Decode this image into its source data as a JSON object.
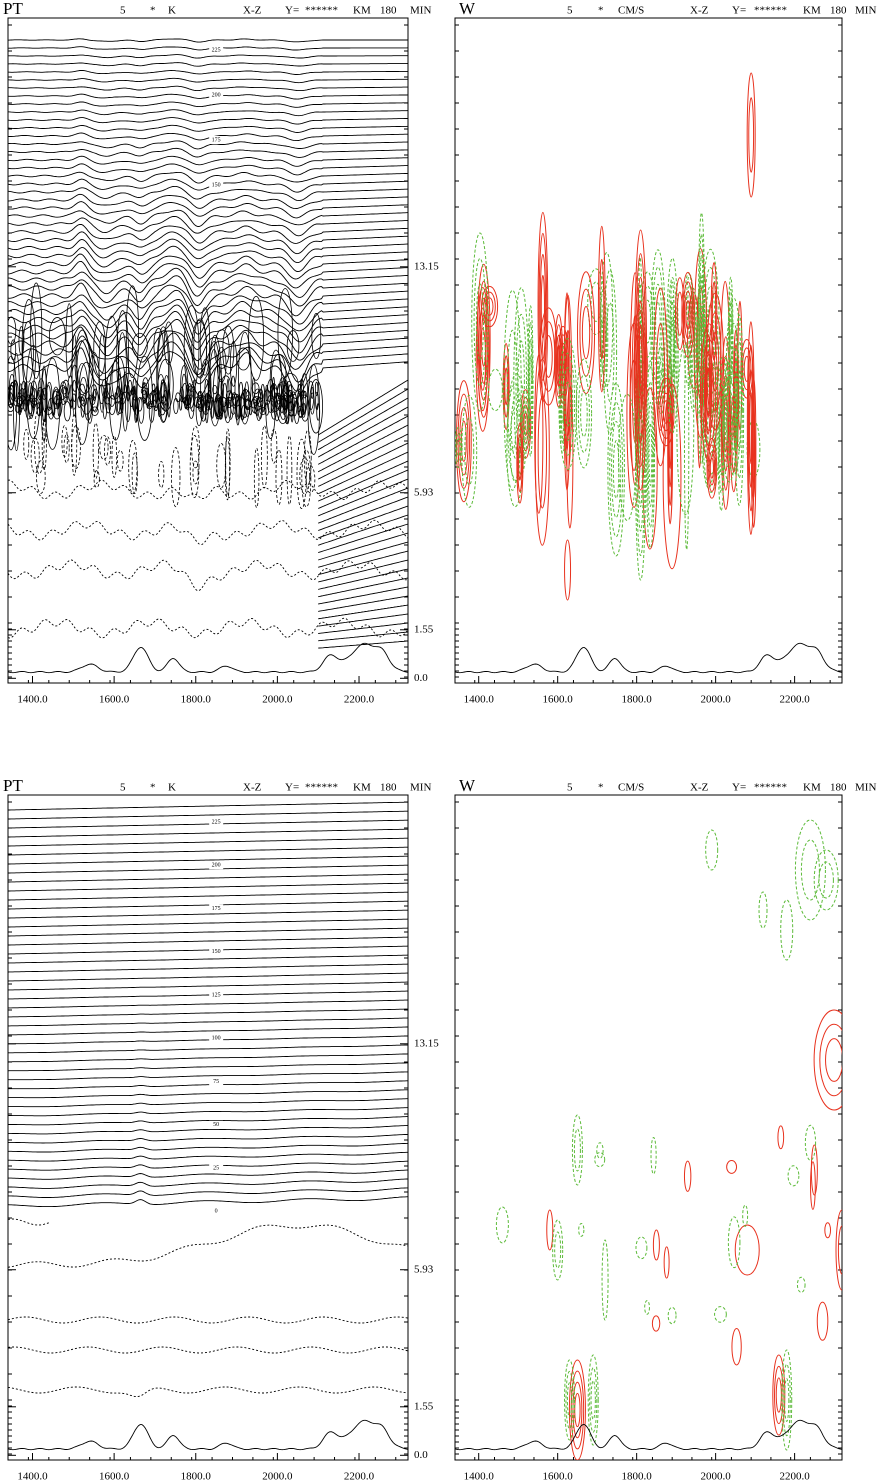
{
  "chart_data": [
    {
      "type": "contour",
      "title": "PT",
      "header": [
        "5",
        "*",
        "K",
        "X-Z",
        "Y=",
        "******",
        "KM",
        "180",
        "MIN"
      ],
      "line_color": "#000000",
      "contour_levels": [
        225,
        200,
        175,
        150
      ],
      "xlim": [
        1340,
        2320
      ],
      "xticks": [
        {
          "value": 1400,
          "label": "1400.0"
        },
        {
          "value": 1600,
          "label": "1600.0"
        },
        {
          "value": 1800,
          "label": "1800.0"
        },
        {
          "value": 2000,
          "label": "2000.0"
        },
        {
          "value": 2200,
          "label": "2200.0"
        }
      ],
      "ylim": [
        -0.15,
        21.1
      ],
      "yticks": [
        {
          "value": 0,
          "label": "0.0"
        },
        1.55,
        5.93,
        13.15
      ]
    },
    {
      "type": "contour",
      "title": "W",
      "header": [
        "5",
        "*",
        "CM/S",
        "X-Z",
        "Y=",
        "******",
        "KM",
        "180",
        "MIN"
      ],
      "positive_color": "#e8321e",
      "negative_color": "#5dbb3a",
      "xlim": [
        1340,
        2320
      ],
      "xticks": [
        {
          "value": 1400,
          "label": "1400.0"
        },
        {
          "value": 1600,
          "label": "1600.0"
        },
        {
          "value": 1800,
          "label": "1800.0"
        },
        {
          "value": 2000,
          "label": "2000.0"
        },
        {
          "value": 2200,
          "label": "2200.0"
        }
      ],
      "ylim": [
        -0.15,
        21.1
      ]
    },
    {
      "type": "contour",
      "title": "PT",
      "header": [
        "5",
        "*",
        "K",
        "X-Z",
        "Y=",
        "******",
        "KM",
        "180",
        "MIN"
      ],
      "line_color": "#000000",
      "contour_levels": [
        225,
        200,
        175,
        150,
        125,
        100,
        75,
        50,
        25,
        0
      ],
      "xlim": [
        1340,
        2320
      ],
      "xticks": [
        {
          "value": 1400,
          "label": "1400.0"
        },
        {
          "value": 1600,
          "label": "1600.0"
        },
        {
          "value": 1800,
          "label": "1800.0"
        },
        {
          "value": 2000,
          "label": "2000.0"
        },
        {
          "value": 2200,
          "label": "2200.0"
        }
      ],
      "ylim": [
        -0.15,
        21.1
      ],
      "yticks": [
        {
          "value": 0,
          "label": "0.0"
        },
        1.55,
        5.93,
        13.15
      ]
    },
    {
      "type": "contour",
      "title": "W",
      "header": [
        "5",
        "*",
        "CM/S",
        "X-Z",
        "Y=",
        "******",
        "KM",
        "180",
        "MIN"
      ],
      "positive_color": "#e8321e",
      "negative_color": "#5dbb3a",
      "xlim": [
        1340,
        2320
      ],
      "xticks": [
        {
          "value": 1400,
          "label": "1400.0"
        },
        {
          "value": 1600,
          "label": "1600.0"
        },
        {
          "value": 1800,
          "label": "1800.0"
        },
        {
          "value": 2000,
          "label": "2000.0"
        },
        {
          "value": 2200,
          "label": "2200.0"
        }
      ],
      "ylim": [
        -0.15,
        21.1
      ]
    }
  ]
}
